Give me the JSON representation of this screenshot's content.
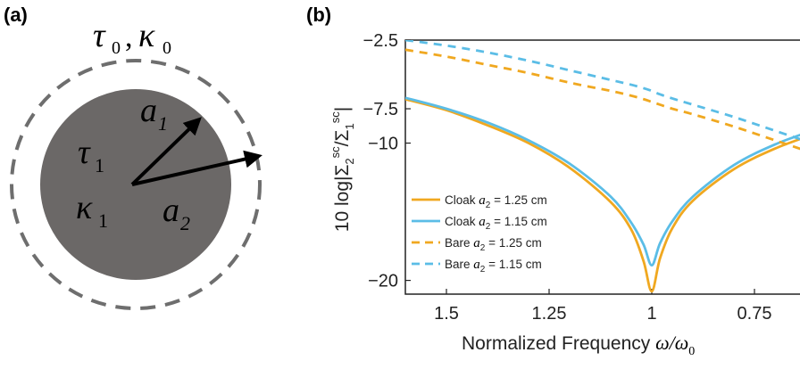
{
  "panel_a": {
    "label": "(a)",
    "outer_medium": {
      "tau": "τ",
      "tau_sub": "0",
      "sep": ",",
      "kappa": "κ",
      "kappa_sub": "0"
    },
    "inner": {
      "tau": "τ",
      "tau_sub": "1",
      "kappa": "κ",
      "kappa_sub": "1"
    },
    "radius1": {
      "sym": "a",
      "sub": "1"
    },
    "radius2": {
      "sym": "a",
      "sub": "2"
    },
    "colors": {
      "core": "#6b6867",
      "dash": "#6e6e6e",
      "arrow": "#000000"
    }
  },
  "panel_b": {
    "label": "(b)",
    "xlabel": {
      "text": "Normalized Frequency ",
      "omega": "ω/ω",
      "omega_sub": "0"
    },
    "ylabel": {
      "prefix": "10 log|Σ",
      "sub1": "2",
      "sup1": "sc",
      "mid": "/Σ",
      "sub2": "1",
      "sup2": "sc",
      "suffix": "|"
    }
  },
  "chart_data": {
    "type": "line",
    "x_axis": {
      "reversed": true,
      "xlim": [
        1.6,
        0.6
      ],
      "ticks": [
        "1.5",
        "1.25",
        "1",
        "0.75"
      ],
      "tick_values": [
        1.5,
        1.25,
        1.0,
        0.75
      ]
    },
    "y_axis": {
      "ylim": [
        -21,
        -2.5
      ],
      "ticks": [
        "-2.5",
        "-7.5",
        "-10",
        "-20"
      ],
      "tick_values": [
        -2.5,
        -7.5,
        -10,
        -20
      ]
    },
    "grid": false,
    "legend_position": "lower-left",
    "x": [
      1.6,
      1.5,
      1.4,
      1.3,
      1.2,
      1.1,
      1.05,
      1.02,
      1.0,
      0.98,
      0.95,
      0.9,
      0.8,
      0.7,
      0.6
    ],
    "series": [
      {
        "name": "Cloak a2 = 1.25 cm",
        "legend": {
          "pre": "Cloak ",
          "sym": "a",
          "sub": "2",
          "post": " = 1.25 cm"
        },
        "color": "#f0a820",
        "style": "solid",
        "values": [
          -6.8,
          -7.6,
          -8.7,
          -10.0,
          -11.8,
          -14.3,
          -16.3,
          -18.6,
          -20.8,
          -18.4,
          -16.2,
          -14.2,
          -11.9,
          -10.4,
          -9.3
        ]
      },
      {
        "name": "Cloak a2 = 1.15 cm",
        "legend": {
          "pre": "Cloak ",
          "sym": "a",
          "sub": "2",
          "post": " = 1.15 cm"
        },
        "color": "#5bbde6",
        "style": "solid",
        "values": [
          -6.7,
          -7.5,
          -8.5,
          -9.8,
          -11.5,
          -13.9,
          -15.8,
          -17.4,
          -18.9,
          -17.3,
          -15.7,
          -13.9,
          -11.6,
          -10.1,
          -9.0
        ]
      },
      {
        "name": "Bare a2 = 1.25 cm",
        "legend": {
          "pre": "Bare ",
          "sym": "a",
          "sub": "2",
          "post": " = 1.25 cm"
        },
        "color": "#f0a820",
        "style": "dashed",
        "values": [
          -3.2,
          -3.7,
          -4.3,
          -4.9,
          -5.6,
          -6.2,
          -6.55,
          -6.8,
          -7.0,
          -7.2,
          -7.5,
          -7.9,
          -8.8,
          -9.8,
          -10.8
        ]
      },
      {
        "name": "Bare a2 = 1.15 cm",
        "legend": {
          "pre": "Bare ",
          "sym": "a",
          "sub": "2",
          "post": " = 1.15 cm"
        },
        "color": "#5bbde6",
        "style": "dashed",
        "values": [
          -2.5,
          -2.9,
          -3.4,
          -4.0,
          -4.7,
          -5.4,
          -5.75,
          -6.0,
          -6.2,
          -6.45,
          -6.75,
          -7.2,
          -8.1,
          -9.1,
          -10.1
        ]
      }
    ]
  }
}
